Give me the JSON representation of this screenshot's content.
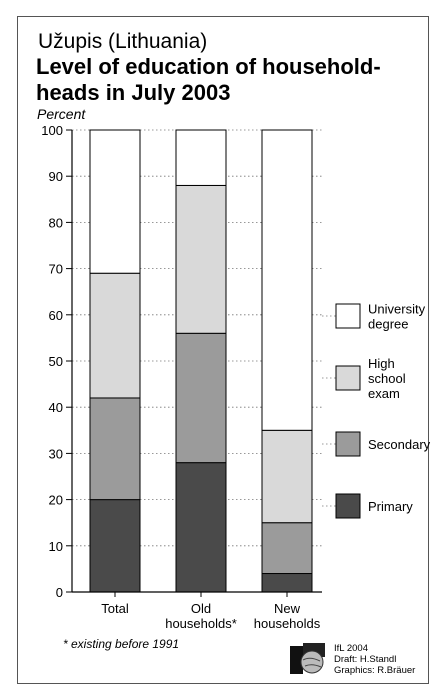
{
  "header": {
    "supertitle": "Užupis (Lithuania)",
    "title_line1": "Level of education of household-",
    "title_line2": "heads in July 2003",
    "unit": "Percent"
  },
  "footnote": "* existing before 1991",
  "credits": {
    "line1": "IfL 2004",
    "line2": "Draft: H.Standl",
    "line3": "Graphics: R.Bräuer"
  },
  "chart_data": {
    "type": "bar",
    "stacked": true,
    "categories": [
      [
        "Total"
      ],
      [
        "Old",
        "households*"
      ],
      [
        "New",
        "households"
      ]
    ],
    "series": [
      {
        "name": "Primary",
        "values": [
          20,
          28,
          4
        ],
        "color": "#4a4a4a"
      },
      {
        "name": "Secondary",
        "values": [
          22,
          28,
          11
        ],
        "color": "#9b9b9b"
      },
      {
        "name": "High school exam",
        "legend_lines": [
          "High",
          "school",
          "exam"
        ],
        "values": [
          27,
          32,
          20
        ],
        "color": "#d9d9d9"
      },
      {
        "name": "University degree",
        "legend_lines": [
          "University",
          "degree"
        ],
        "values": [
          31,
          12,
          65
        ],
        "color": "#ffffff"
      }
    ],
    "ylim": [
      0,
      100
    ],
    "yticks": [
      0,
      10,
      20,
      30,
      40,
      50,
      60,
      70,
      80,
      90,
      100
    ],
    "grid": "dotted horizontal",
    "legend_position": "right"
  }
}
